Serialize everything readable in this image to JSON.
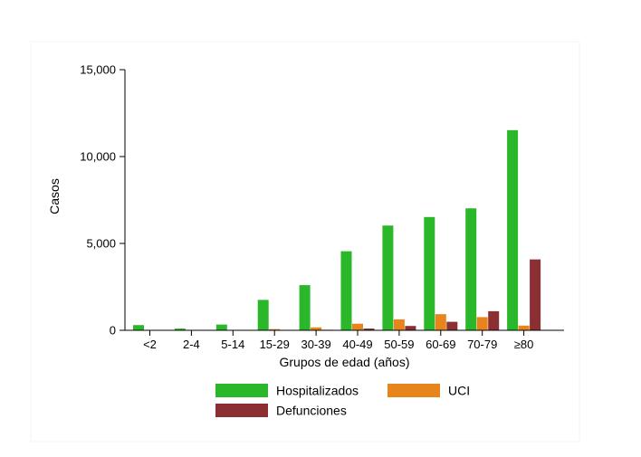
{
  "chart_data": {
    "type": "bar",
    "title": "",
    "xlabel": "Grupos de edad (años)",
    "ylabel": "Casos",
    "ylim": [
      0,
      15000
    ],
    "yticks": [
      0,
      5000,
      10000,
      15000
    ],
    "ytick_labels": [
      "0",
      "5,000",
      "10,000",
      "15,000"
    ],
    "categories": [
      "<2",
      "2-4",
      "5-14",
      "15-29",
      "30-39",
      "40-49",
      "50-59",
      "60-69",
      "70-79",
      "≥80"
    ],
    "series": [
      {
        "name": "Hospitalizados",
        "color": "#2ab82a",
        "values": [
          300,
          100,
          330,
          1750,
          2600,
          4550,
          6030,
          6520,
          7020,
          11520
        ]
      },
      {
        "name": "UCI",
        "color": "#e8841c",
        "values": [
          10,
          5,
          15,
          70,
          170,
          380,
          630,
          930,
          760,
          270
        ]
      },
      {
        "name": "Defunciones",
        "color": "#8b2f33",
        "values": [
          5,
          5,
          5,
          10,
          30,
          100,
          250,
          490,
          1100,
          4080
        ]
      }
    ],
    "grid": false,
    "legend_position": "bottom"
  }
}
